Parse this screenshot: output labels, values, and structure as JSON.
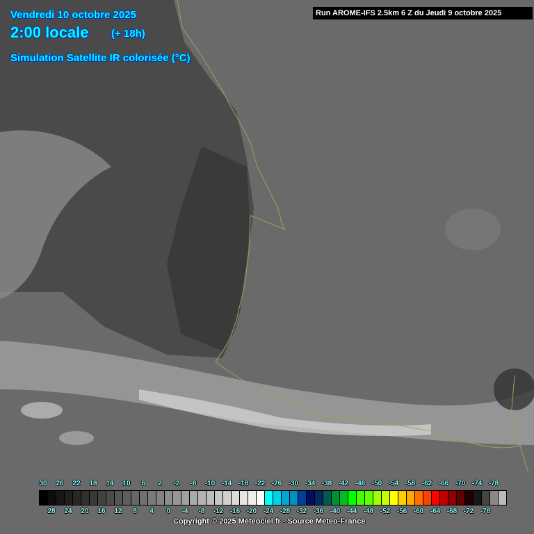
{
  "header": {
    "date": "Vendredi 10 octobre 2025",
    "time": "2:00 locale",
    "lead": "(+ 18h)",
    "product": "Simulation Satellite IR colorisée (°C)",
    "run": "Run AROME-IFS 2.5km 6 Z du Jeudi 9 octobre 2025"
  },
  "legend": {
    "top_labels": [
      "30",
      "26",
      "22",
      "18",
      "14",
      "10",
      "6",
      "2",
      "-2",
      "-6",
      "-10",
      "-14",
      "-18",
      "-22",
      "-26",
      "-30",
      "-34",
      "-38",
      "-42",
      "-46",
      "-50",
      "-54",
      "-58",
      "-62",
      "-66",
      "-70",
      "-74",
      "-78"
    ],
    "bottom_labels": [
      "28",
      "24",
      "20",
      "16",
      "12",
      "8",
      "4",
      "0",
      "-4",
      "-8",
      "-12",
      "-16",
      "-20",
      "-24",
      "-28",
      "-32",
      "-36",
      "-40",
      "-44",
      "-48",
      "-52",
      "-56",
      "-60",
      "-64",
      "-68",
      "-72",
      "-76"
    ],
    "colors": [
      "#000000",
      "#0d0d0d",
      "#171717",
      "#1f1f1f",
      "#272727",
      "#303030",
      "#393939",
      "#424242",
      "#4b4b4b",
      "#555555",
      "#5e5e5e",
      "#676767",
      "#717171",
      "#7a7a7a",
      "#838383",
      "#8d8d8d",
      "#969696",
      "#a0a0a0",
      "#a9a9a9",
      "#b3b3b3",
      "#bcbcbc",
      "#c6c6c6",
      "#d0d0d0",
      "#dadada",
      "#e4e4e4",
      "#efefef",
      "#ffffff",
      "#00ffff",
      "#00d0e8",
      "#00a8d8",
      "#0090c0",
      "#004098",
      "#001060",
      "#002a60",
      "#005a50",
      "#009030",
      "#00c020",
      "#00ff00",
      "#40ff00",
      "#60ff00",
      "#a0ff00",
      "#c8ff00",
      "#ffff00",
      "#ffd000",
      "#ffa800",
      "#ff7000",
      "#ff4000",
      "#ff0000",
      "#c00000",
      "#900000",
      "#600000",
      "#200000",
      "#181818",
      "#444444",
      "#888888",
      "#bbbbbb"
    ]
  },
  "copyright": "Copyright © 2025 Meteociel.fr - Source Meteo-France",
  "colors": {
    "title": "#00ffff",
    "coastline": "#a0a060",
    "sea": "#3c3c3c",
    "land": "#6e6e6e"
  }
}
